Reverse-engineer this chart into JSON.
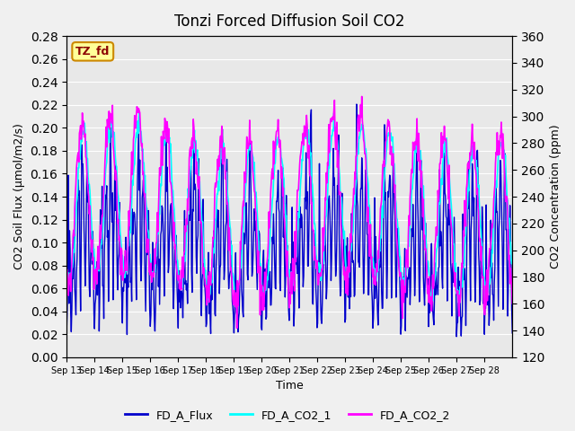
{
  "title": "Tonzi Forced Diffusion Soil CO2",
  "xlabel": "Time",
  "ylabel_left": "CO2 Soil Flux (μmol/m2/s)",
  "ylabel_right": "CO2 Concentration (ppm)",
  "site_label": "TZ_fd",
  "ylim_left": [
    0.0,
    0.28
  ],
  "ylim_right": [
    120,
    360
  ],
  "yticks_left": [
    0.0,
    0.02,
    0.04,
    0.06,
    0.08,
    0.1,
    0.12,
    0.14,
    0.16,
    0.18,
    0.2,
    0.22,
    0.24,
    0.26,
    0.28
  ],
  "yticks_right": [
    120,
    140,
    160,
    180,
    200,
    220,
    240,
    260,
    280,
    300,
    320,
    340,
    360
  ],
  "xtick_labels": [
    "Sep 13",
    "Sep 14",
    "Sep 15",
    "Sep 16",
    "Sep 17",
    "Sep 18",
    "Sep 19",
    "Sep 20",
    "Sep 21",
    "Sep 22",
    "Sep 23",
    "Sep 24",
    "Sep 25",
    "Sep 26",
    "Sep 27",
    "Sep 28"
  ],
  "flux_color": "#0000CC",
  "co2_1_color": "#00FFFF",
  "co2_2_color": "#FF00FF",
  "background_color": "#E8E8E8",
  "grid_color": "#FFFFFF",
  "legend_labels": [
    "FD_A_Flux",
    "FD_A_CO2_1",
    "FD_A_CO2_2"
  ],
  "flux_linewidth": 1.0,
  "co2_linewidth": 1.2,
  "n_days": 16,
  "points_per_day": 48
}
